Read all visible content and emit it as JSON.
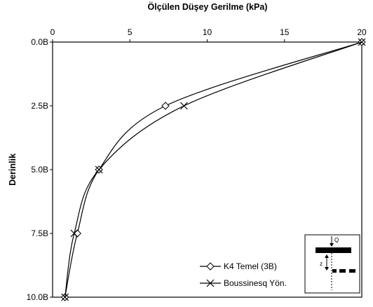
{
  "chart_data": {
    "type": "line",
    "x_axis_title": "Ölçülen Düşey Gerilme (kPa)",
    "y_axis_title": "Derinlik",
    "x_axis_position": "top",
    "y_axis_inverted": true,
    "xlim": [
      0,
      20
    ],
    "ylim": [
      0,
      10
    ],
    "x_ticks": [
      0,
      5,
      10,
      15,
      20
    ],
    "y_ticks": [
      0,
      2.5,
      5,
      7.5,
      10
    ],
    "y_tick_labels": [
      "0.0B",
      "2.5B",
      "5.0B",
      "7.5B",
      "10.0B"
    ],
    "grid": false,
    "legend_placement": "bottom-right",
    "series": [
      {
        "name": "K4 Temel (3B)",
        "marker": "diamond",
        "x": [
          20,
          7.3,
          3.0,
          1.6,
          0.8
        ],
        "y": [
          0,
          2.5,
          5.0,
          7.5,
          10.0
        ]
      },
      {
        "name": "Boussinesq Yön.",
        "marker": "cross",
        "x": [
          20,
          8.5,
          3.0,
          1.4,
          0.8
        ],
        "y": [
          0,
          2.5,
          5.0,
          7.5,
          10.0
        ]
      }
    ],
    "inset": {
      "load_label": "Q",
      "depth_label": "z"
    }
  }
}
